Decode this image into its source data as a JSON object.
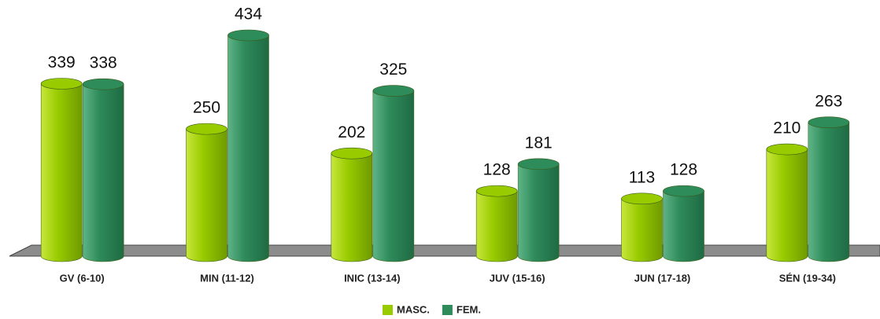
{
  "chart_data": {
    "type": "bar",
    "categories": [
      "GV (6-10)",
      "MIN (11-12)",
      "INIC (13-14)",
      "JUV (15-16)",
      "JUN (17-18)",
      "SÉN (19-34)"
    ],
    "series": [
      {
        "name": "MASC.",
        "color": "#99cc00",
        "values": [
          339,
          250,
          202,
          128,
          113,
          210
        ]
      },
      {
        "name": "FEM.",
        "color": "#2e8b5a",
        "values": [
          338,
          434,
          325,
          181,
          128,
          263
        ]
      }
    ]
  }
}
